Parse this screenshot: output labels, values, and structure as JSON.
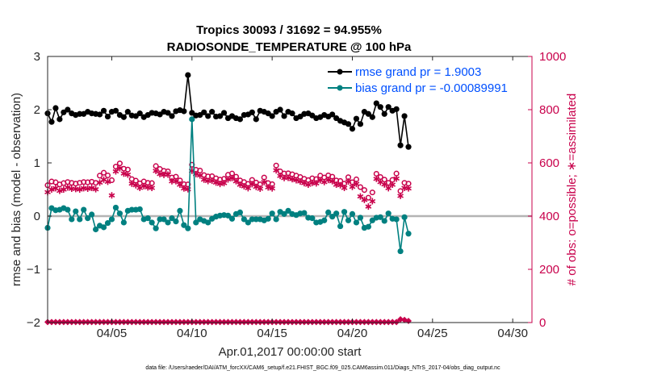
{
  "chart_data": {
    "type": "line",
    "title": "Tropics 30093 / 31692 = 94.955%",
    "subtitle": "RADIOSONDE_TEMPERATURE @ 100 hPa",
    "xlabel": "Apr.01,2017 00:00:00 start",
    "ylabel": "rmse and bias (model - observation)",
    "ylabel_right": "# of obs: o=possible; ∗=assimilated",
    "footer": "data file: /Users/raeder/DAI/ATM_forcXX/CAM6_setup/f.e21.FHIST_BGC.f09_025.CAM6assim.011/Diags_NTrS_2017-04/obs_diag_output.nc",
    "xlim": [
      1.0,
      31.2
    ],
    "ylim": [
      -2,
      3
    ],
    "ylim_right": [
      0,
      1000
    ],
    "x_ticks": [
      5,
      10,
      15,
      20,
      25,
      30
    ],
    "x_tick_labels": [
      "04/05",
      "04/10",
      "04/15",
      "04/20",
      "04/25",
      "04/30"
    ],
    "y_ticks": [
      -2,
      -1,
      0,
      1,
      2,
      3
    ],
    "y_tick_labels": [
      "−2",
      "−1",
      "0",
      "1",
      "2",
      "3"
    ],
    "y_right_ticks": [
      0,
      200,
      400,
      600,
      800,
      1000
    ],
    "y_right_tick_labels": [
      "0",
      "200",
      "400",
      "600",
      "800",
      "1000"
    ],
    "legend": [
      "rmse grand pr = 1.9003",
      "bias grand pr = -0.00089991"
    ],
    "colors": {
      "rmse": "#000000",
      "bias": "#008080",
      "obs": "#c8004b",
      "zero_line": "#b4b4b4",
      "legend_text": "#0050ff"
    },
    "series": [
      {
        "name": "rmse",
        "start": 1.0,
        "step": 0.25,
        "values": [
          1.93,
          1.77,
          2.03,
          1.82,
          1.95,
          2.0,
          1.93,
          1.9,
          1.92,
          1.92,
          1.96,
          1.93,
          1.92,
          1.91,
          1.98,
          1.87,
          1.96,
          1.98,
          1.9,
          1.86,
          1.96,
          1.89,
          1.88,
          1.93,
          1.86,
          1.9,
          1.94,
          1.93,
          1.91,
          1.96,
          1.94,
          1.88,
          1.97,
          1.99,
          1.97,
          2.65,
          1.94,
          1.89,
          1.9,
          1.95,
          1.88,
          1.96,
          1.87,
          1.88,
          1.94,
          1.84,
          1.88,
          1.84,
          1.82,
          1.9,
          1.91,
          1.95,
          1.82,
          1.98,
          1.96,
          1.93,
          1.88,
          1.96,
          2.0,
          1.88,
          1.96,
          1.93,
          1.84,
          1.87,
          1.92,
          1.93,
          1.89,
          1.84,
          1.86,
          1.9,
          1.87,
          1.91,
          1.84,
          1.79,
          1.76,
          1.73,
          1.64,
          1.83,
          1.73,
          1.96,
          1.92,
          1.86,
          2.12,
          2.05,
          1.92,
          2.05,
          1.98,
          2.01,
          1.33,
          1.88,
          1.3
        ]
      },
      {
        "name": "bias",
        "start": 1.0,
        "step": 0.25,
        "values": [
          -0.22,
          0.15,
          0.11,
          0.12,
          0.15,
          0.12,
          -0.06,
          0.09,
          -0.06,
          0.12,
          -0.04,
          0.03,
          -0.25,
          -0.18,
          -0.21,
          -0.13,
          -0.06,
          0.16,
          0.05,
          -0.12,
          0.1,
          0.12,
          0.12,
          0.13,
          -0.06,
          -0.04,
          -0.12,
          -0.23,
          -0.06,
          -0.06,
          -0.12,
          -0.04,
          -0.1,
          0.1,
          -0.17,
          -0.23,
          1.82,
          -0.12,
          -0.06,
          -0.09,
          -0.12,
          -0.05,
          -0.01,
          0.01,
          0.02,
          0.01,
          -0.05,
          0.04,
          0.07,
          -0.06,
          -0.12,
          -0.06,
          -0.06,
          -0.06,
          -0.08,
          -0.05,
          0.05,
          -0.06,
          0.08,
          0.04,
          0.1,
          0.04,
          0.02,
          0.05,
          0.06,
          -0.03,
          -0.04,
          -0.12,
          -0.11,
          -0.08,
          0.07,
          -0.01,
          0.05,
          -0.19,
          0.08,
          -0.08,
          0.04,
          -0.12,
          -0.03,
          -0.22,
          -0.2,
          -0.08,
          -0.03,
          -0.02,
          -0.09,
          0.05,
          -0.05,
          -0.06,
          -0.66,
          -0.02,
          -0.33
        ]
      },
      {
        "name": "obs possible",
        "start": 1.0,
        "step": 0.25,
        "values": [
          516,
          530,
          527,
          519,
          524,
          528,
          525,
          522,
          525,
          528,
          527,
          529,
          525,
          552,
          563,
          553,
          535,
          586,
          598,
          578,
          575,
          539,
          533,
          523,
          530,
          525,
          524,
          588,
          577,
          570,
          568,
          545,
          548,
          534,
          520,
          519,
          593,
          574,
          571,
          554,
          549,
          550,
          542,
          537,
          540,
          555,
          560,
          548,
          534,
          528,
          521,
          536,
          526,
          519,
          545,
          524,
          520,
          590,
          568,
          560,
          561,
          557,
          552,
          547,
          540,
          535,
          542,
          539,
          552,
          545,
          553,
          548,
          534,
          532,
          522,
          546,
          527,
          538,
          509,
          498,
          469,
          489,
          559,
          547,
          537,
          525,
          536,
          560,
          494,
          525,
          522
        ]
      },
      {
        "name": "obs assimilated",
        "start": 1.0,
        "step": 0.25,
        "values": [
          490,
          500,
          505,
          495,
          500,
          508,
          503,
          502,
          500,
          505,
          503,
          506,
          501,
          526,
          537,
          529,
          478,
          568,
          580,
          560,
          556,
          522,
          516,
          506,
          513,
          508,
          506,
          570,
          558,
          555,
          556,
          531,
          531,
          518,
          504,
          501,
          570,
          558,
          553,
          537,
          532,
          533,
          526,
          521,
          524,
          538,
          543,
          531,
          518,
          512,
          505,
          520,
          510,
          503,
          528,
          508,
          504,
          572,
          551,
          543,
          544,
          539,
          535,
          530,
          524,
          518,
          525,
          523,
          535,
          528,
          536,
          531,
          518,
          516,
          506,
          530,
          510,
          521,
          474,
          461,
          436,
          456,
          540,
          528,
          519,
          505,
          518,
          541,
          476,
          506,
          504
        ]
      },
      {
        "name": "obs possible (bottom)",
        "start": 1.0,
        "step": 0.25,
        "values": [
          2,
          2,
          2,
          2,
          2,
          2,
          2,
          2,
          2,
          2,
          2,
          2,
          2,
          2,
          2,
          2,
          2,
          2,
          2,
          2,
          2,
          2,
          2,
          2,
          2,
          2,
          2,
          2,
          2,
          2,
          2,
          2,
          2,
          2,
          2,
          2,
          2,
          2,
          2,
          2,
          2,
          2,
          2,
          2,
          2,
          2,
          2,
          2,
          2,
          2,
          2,
          2,
          2,
          2,
          2,
          2,
          2,
          2,
          2,
          2,
          2,
          2,
          2,
          2,
          2,
          2,
          2,
          2,
          2,
          2,
          2,
          2,
          2,
          2,
          2,
          2,
          2,
          2,
          2,
          2,
          2,
          2,
          2,
          2,
          2,
          2,
          2,
          2,
          12,
          10,
          6
        ]
      }
    ]
  }
}
